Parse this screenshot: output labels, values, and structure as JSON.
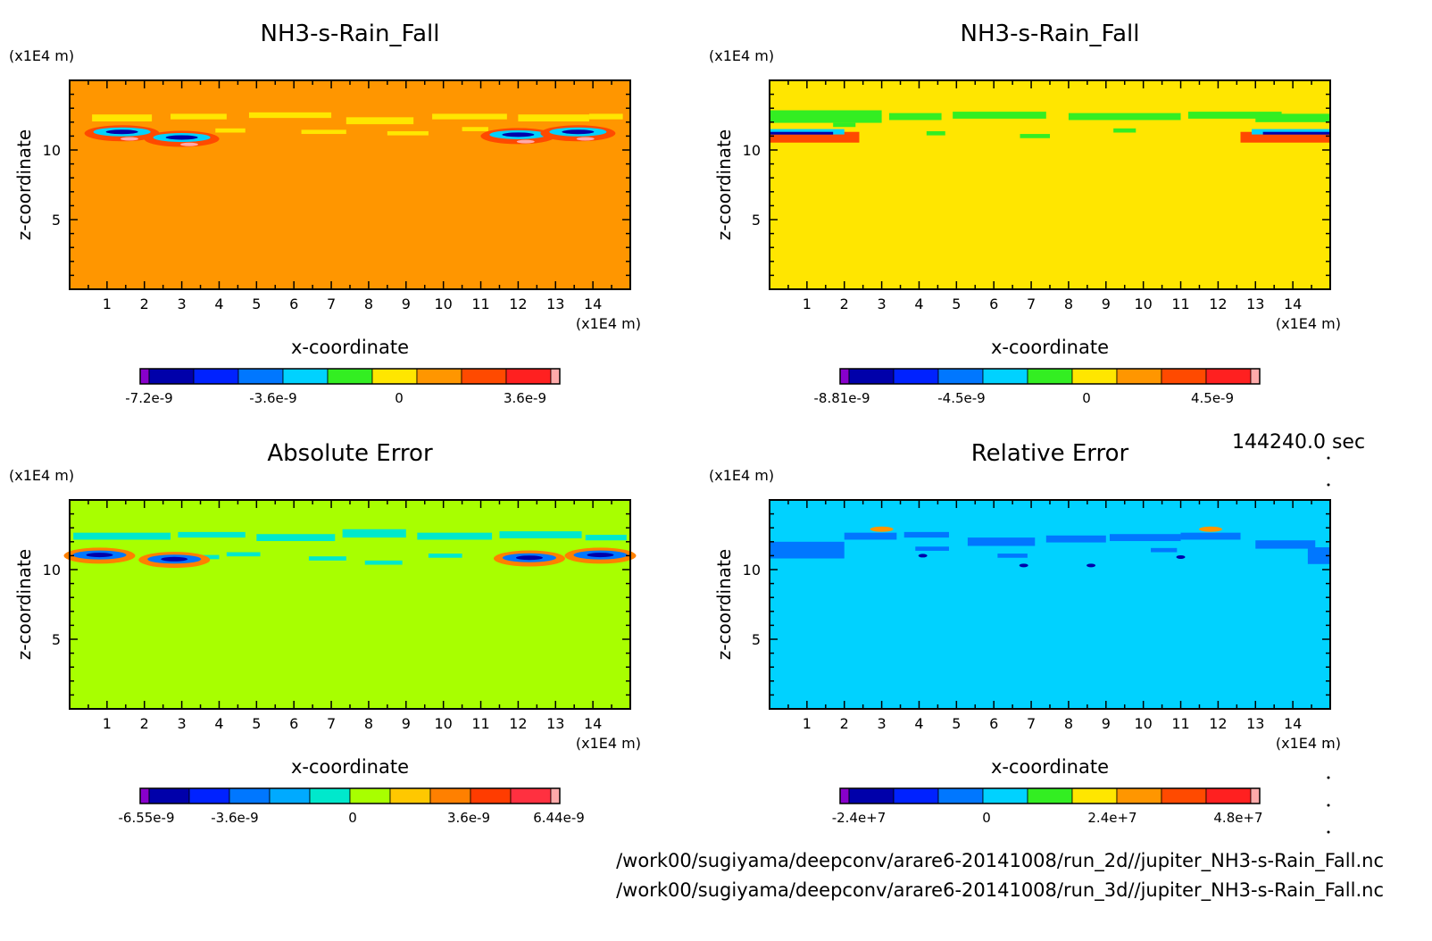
{
  "time_label": "144240.0 sec",
  "file_paths": [
    "/work00/sugiyama/deepconv/arare6-20141008/run_2d//jupiter_NH3-s-Rain_Fall.nc",
    "/work00/sugiyama/deepconv/arare6-20141008/run_3d//jupiter_NH3-s-Rain_Fall.nc"
  ],
  "chart_data": [
    {
      "type": "heatmap",
      "title": "NH3-s-Rain_Fall",
      "xlabel": "x-coordinate",
      "ylabel": "z-coordinate",
      "x_unit": "(x1E4 m)",
      "y_unit": "(x1E4 m)",
      "xlim": [
        0,
        15
      ],
      "ylim": [
        0,
        15
      ],
      "x_ticks": [
        1,
        2,
        3,
        4,
        5,
        6,
        7,
        8,
        9,
        10,
        11,
        12,
        13,
        14
      ],
      "y_ticks": [
        5,
        10
      ],
      "background_level_value": 0,
      "colorbar": {
        "colors": [
          "#8800cc",
          "#0000aa",
          "#0022ff",
          "#0077ff",
          "#00d2ff",
          "#33ee22",
          "#ffe600",
          "#ff9600",
          "#ff4a00",
          "#ff2020",
          "#ffaaaa"
        ],
        "labels": [
          "-7.2e-9",
          "-3.6e-9",
          "0",
          "3.6e-9"
        ]
      }
    },
    {
      "type": "heatmap",
      "title": "NH3-s-Rain_Fall",
      "xlabel": "x-coordinate",
      "ylabel": "z-coordinate",
      "x_unit": "(x1E4 m)",
      "y_unit": "(x1E4 m)",
      "xlim": [
        0,
        15
      ],
      "ylim": [
        0,
        15
      ],
      "x_ticks": [
        1,
        2,
        3,
        4,
        5,
        6,
        7,
        8,
        9,
        10,
        11,
        12,
        13,
        14
      ],
      "y_ticks": [
        5,
        10
      ],
      "background_level_value": 0,
      "colorbar": {
        "colors": [
          "#8800cc",
          "#0000aa",
          "#0022ff",
          "#0077ff",
          "#00d2ff",
          "#33ee22",
          "#ffe600",
          "#ff9600",
          "#ff4a00",
          "#ff2020",
          "#ffaaaa"
        ],
        "labels": [
          "-8.81e-9",
          "-4.5e-9",
          "0",
          "4.5e-9"
        ]
      }
    },
    {
      "type": "heatmap",
      "title": "Absolute Error",
      "xlabel": "x-coordinate",
      "ylabel": "z-coordinate",
      "x_unit": "(x1E4 m)",
      "y_unit": "(x1E4 m)",
      "xlim": [
        0,
        15
      ],
      "ylim": [
        0,
        15
      ],
      "x_ticks": [
        1,
        2,
        3,
        4,
        5,
        6,
        7,
        8,
        9,
        10,
        11,
        12,
        13,
        14
      ],
      "y_ticks": [
        5,
        10
      ],
      "background_level_value": 0,
      "colorbar": {
        "colors": [
          "#8800cc",
          "#0000aa",
          "#0022ff",
          "#0077ff",
          "#00aaff",
          "#00e8cc",
          "#a8ff00",
          "#ffc800",
          "#ff8000",
          "#ff3c00",
          "#ff3040",
          "#ffaaaa"
        ],
        "labels": [
          "-6.55e-9",
          "-3.6e-9",
          "0",
          "3.6e-9",
          "6.44e-9"
        ]
      }
    },
    {
      "type": "heatmap",
      "title": "Relative Error",
      "xlabel": "x-coordinate",
      "ylabel": "z-coordinate",
      "x_unit": "(x1E4 m)",
      "y_unit": "(x1E4 m)",
      "xlim": [
        0,
        15
      ],
      "ylim": [
        0,
        15
      ],
      "x_ticks": [
        1,
        2,
        3,
        4,
        5,
        6,
        7,
        8,
        9,
        10,
        11,
        12,
        13,
        14
      ],
      "y_ticks": [
        5,
        10
      ],
      "background_level_value": 0,
      "colorbar": {
        "colors": [
          "#8800cc",
          "#0000aa",
          "#0022ff",
          "#0077ff",
          "#00d2ff",
          "#33ee22",
          "#ffe600",
          "#ff9600",
          "#ff4a00",
          "#ff2020",
          "#ffaaaa"
        ],
        "labels": [
          "-2.4e+7",
          "0",
          "2.4e+7",
          "4.8e+7"
        ]
      }
    }
  ]
}
